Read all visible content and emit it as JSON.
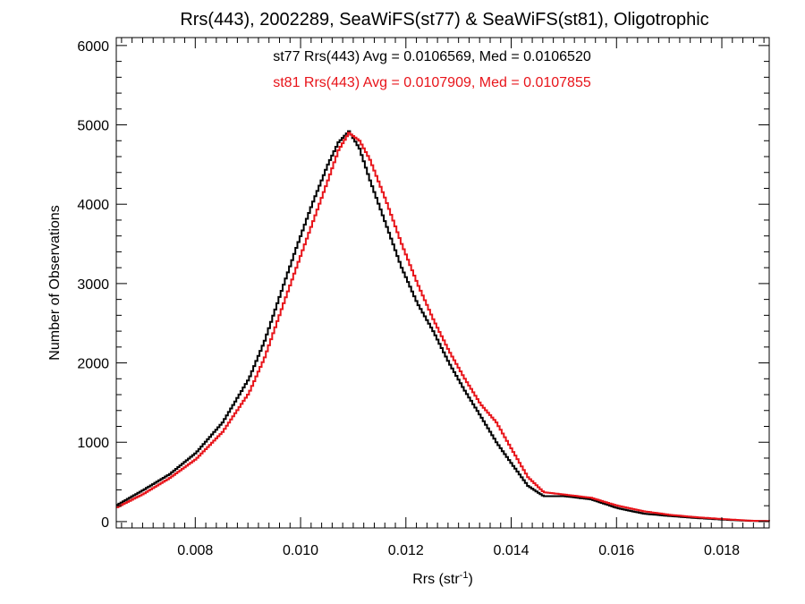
{
  "chart_data": {
    "type": "line",
    "title": "Rrs(443), 2002289, SeaWiFS(st77) & SeaWiFS(st81), Oligotrophic",
    "xlabel": "Rrs (str",
    "xlabel_sup": "-1",
    "xlabel_close": ")",
    "ylabel": "Number of Observations",
    "xlim": [
      0.0065,
      0.0189
    ],
    "ylim": [
      -80,
      6100
    ],
    "x_ticks": [
      0.008,
      0.01,
      0.012,
      0.014,
      0.016,
      0.018
    ],
    "x_tick_labels": [
      "0.008",
      "0.010",
      "0.012",
      "0.014",
      "0.016",
      "0.018"
    ],
    "y_ticks": [
      0,
      1000,
      2000,
      3000,
      4000,
      5000,
      6000
    ],
    "y_tick_labels": [
      "0",
      "1000",
      "2000",
      "3000",
      "4000",
      "5000",
      "6000"
    ],
    "grid": false,
    "step": true,
    "annotations": [
      {
        "text": "st77 Rrs(443) Avg = 0.0106569, Med = 0.0106520",
        "color": "#000000"
      },
      {
        "text": "st81 Rrs(443) Avg = 0.0107909, Med = 0.0107855",
        "color": "#e8141a"
      }
    ],
    "series": [
      {
        "color": "#000000",
        "x": [
          0.0065,
          0.007,
          0.0075,
          0.008,
          0.0085,
          0.009,
          0.0093,
          0.0096,
          0.0099,
          0.0102,
          0.0105,
          0.0107,
          0.0109,
          0.0111,
          0.0113,
          0.0116,
          0.0119,
          0.0122,
          0.0125,
          0.0128,
          0.0131,
          0.0134,
          0.0137,
          0.014,
          0.0143,
          0.0146,
          0.015,
          0.0155,
          0.016,
          0.0165,
          0.017,
          0.0175,
          0.018,
          0.0185,
          0.0189
        ],
        "y": [
          210,
          400,
          600,
          870,
          1250,
          1800,
          2280,
          2870,
          3450,
          4000,
          4500,
          4780,
          4920,
          4700,
          4300,
          3750,
          3200,
          2750,
          2400,
          2000,
          1650,
          1330,
          1000,
          720,
          450,
          320,
          320,
          280,
          170,
          100,
          70,
          45,
          25,
          10,
          5
        ]
      },
      {
        "color": "#e8141a",
        "x": [
          0.0065,
          0.007,
          0.0075,
          0.008,
          0.0085,
          0.009,
          0.0093,
          0.0096,
          0.0099,
          0.0102,
          0.0105,
          0.0107,
          0.0109,
          0.0111,
          0.0113,
          0.0116,
          0.0119,
          0.0122,
          0.0125,
          0.0128,
          0.0131,
          0.0134,
          0.0137,
          0.014,
          0.0143,
          0.0146,
          0.015,
          0.0155,
          0.016,
          0.0165,
          0.017,
          0.0175,
          0.018,
          0.0185,
          0.0189
        ],
        "y": [
          180,
          350,
          550,
          790,
          1130,
          1620,
          2070,
          2640,
          3200,
          3750,
          4300,
          4680,
          4900,
          4800,
          4560,
          4050,
          3500,
          3000,
          2550,
          2150,
          1800,
          1480,
          1250,
          900,
          560,
          370,
          340,
          300,
          200,
          130,
          85,
          55,
          32,
          12,
          5
        ]
      }
    ]
  }
}
